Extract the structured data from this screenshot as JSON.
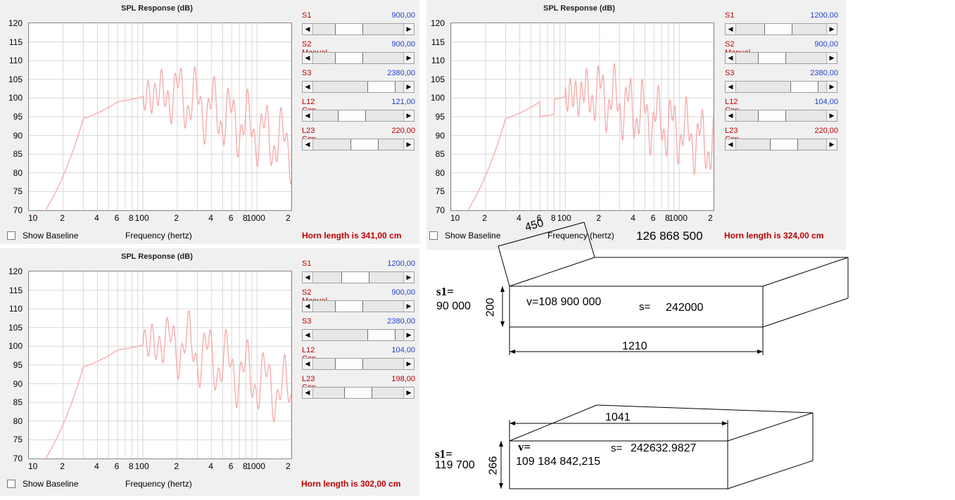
{
  "panels": [
    {
      "title": "SPL Response (dB)",
      "y_ticks": [
        "120",
        "115",
        "110",
        "105",
        "100",
        "95",
        "90",
        "85",
        "80",
        "75",
        "70"
      ],
      "x_ticks": [
        "10",
        "2",
        "4",
        "6",
        "8",
        "100",
        "2",
        "4",
        "6",
        "8",
        "1000",
        "2"
      ],
      "checkbox_label": "Show Baseline",
      "checkbox_checked": false,
      "x_axis_label": "Frequency (hertz)",
      "horn_length": "Horn length is 341,00 cm",
      "sliders": [
        {
          "label": "S1",
          "value": "900,00",
          "value_color": "blue",
          "thumb": 0.35
        },
        {
          "label": "S2 Manual",
          "value": "900,00",
          "value_color": "blue",
          "thumb": 0.35
        },
        {
          "label": "S3",
          "value": "2380,00",
          "value_color": "blue",
          "thumb": 0.88
        },
        {
          "label": "L12 Con",
          "value": "121,00",
          "value_color": "blue",
          "thumb": 0.4
        },
        {
          "label": "L23 Con",
          "value": "220,00",
          "value_color": "red",
          "thumb": 0.6
        }
      ]
    },
    {
      "title": "SPL Response (dB)",
      "y_ticks": [
        "120",
        "115",
        "110",
        "105",
        "100",
        "95",
        "90",
        "85",
        "80",
        "75",
        "70"
      ],
      "x_ticks": [
        "10",
        "2",
        "4",
        "6",
        "8",
        "100",
        "2",
        "4",
        "6",
        "8",
        "1000",
        "2"
      ],
      "checkbox_label": "Show Baseline",
      "checkbox_checked": false,
      "x_axis_label": "Frequency (hertz)",
      "horn_length": "Horn length is 324,00 cm",
      "extra_text": "126 868 500",
      "sliders": [
        {
          "label": "S1",
          "value": "1200,00",
          "value_color": "blue",
          "thumb": 0.45
        },
        {
          "label": "S2 Manual",
          "value": "900,00",
          "value_color": "blue",
          "thumb": 0.35
        },
        {
          "label": "S3",
          "value": "2380,00",
          "value_color": "blue",
          "thumb": 0.88
        },
        {
          "label": "L12 Con",
          "value": "104,00",
          "value_color": "blue",
          "thumb": 0.35
        },
        {
          "label": "L23 Con",
          "value": "220,00",
          "value_color": "red",
          "thumb": 0.55
        }
      ]
    },
    {
      "title": "SPL Response (dB)",
      "y_ticks": [
        "120",
        "115",
        "110",
        "105",
        "100",
        "95",
        "90",
        "85",
        "80",
        "75",
        "70"
      ],
      "x_ticks": [
        "10",
        "2",
        "4",
        "6",
        "8",
        "100",
        "2",
        "4",
        "6",
        "8",
        "1000",
        "2"
      ],
      "checkbox_label": "Show Baseline",
      "checkbox_checked": false,
      "x_axis_label": "Frequency (hertz)",
      "horn_length": "Horn length is 302,00 cm",
      "sliders": [
        {
          "label": "S1",
          "value": "1200,00",
          "value_color": "blue",
          "thumb": 0.45
        },
        {
          "label": "S2 Manual",
          "value": "900,00",
          "value_color": "blue",
          "thumb": 0.35
        },
        {
          "label": "S3",
          "value": "2380,00",
          "value_color": "blue",
          "thumb": 0.88
        },
        {
          "label": "L12 Con",
          "value": "104,00",
          "value_color": "blue",
          "thumb": 0.35
        },
        {
          "label": "L23 Con",
          "value": "198,00",
          "value_color": "red",
          "thumb": 0.5
        }
      ]
    }
  ],
  "sketch1": {
    "depth": "450",
    "s1_label": "s1=",
    "s1_value": "90 000",
    "height": "200",
    "volume": "v=108 900 000",
    "s_label": "s=",
    "s_value": "242000",
    "width": "1210"
  },
  "sketch2": {
    "width": "1041",
    "v_label": "v=",
    "s_label": "s=",
    "s_value": "242632.9827",
    "s1_label": "s1=",
    "s1_value": "119 700",
    "height": "266",
    "volume_value": "109 184 842,215"
  },
  "colors": {
    "curve": "#f7a8a8",
    "grid": "#d8d8d8",
    "label_red": "#c00000",
    "value_blue": "#2244cc",
    "panel_bg": "#f0f0f0"
  }
}
